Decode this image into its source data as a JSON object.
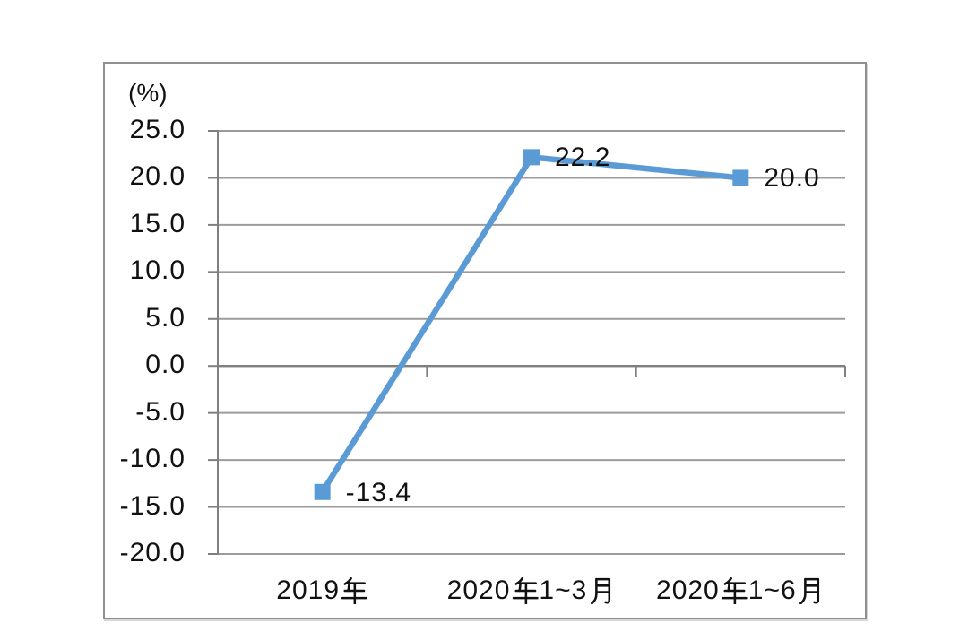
{
  "page": {
    "background": "#ffffff"
  },
  "chart_data": {
    "type": "line",
    "title": "",
    "xlabel": "",
    "ylabel": "(%)",
    "categories": [
      "2019年",
      "2020年1~3月",
      "2020年1~6月"
    ],
    "values": [
      -13.4,
      22.2,
      20.0
    ],
    "data_labels": [
      "-13.4",
      "22.2",
      "20.0"
    ],
    "y_tick_labels": [
      "25.0",
      "20.0",
      "15.0",
      "10.0",
      "5.0",
      "0.0",
      "-5.0",
      "-10.0",
      "-15.0",
      "-20.0"
    ],
    "ylim": [
      -20,
      25
    ],
    "y_step": 5,
    "grid": true,
    "legend": false,
    "marker": "square",
    "style": {
      "line_color": "#5B9BD5",
      "marker_color": "#5B9BD5",
      "gridline_color": "#9b9b9b",
      "axis_color": "#7f7f7f",
      "frame_border_color": "#8f8f8f",
      "text_color": "#111111",
      "background": "#ffffff"
    }
  }
}
